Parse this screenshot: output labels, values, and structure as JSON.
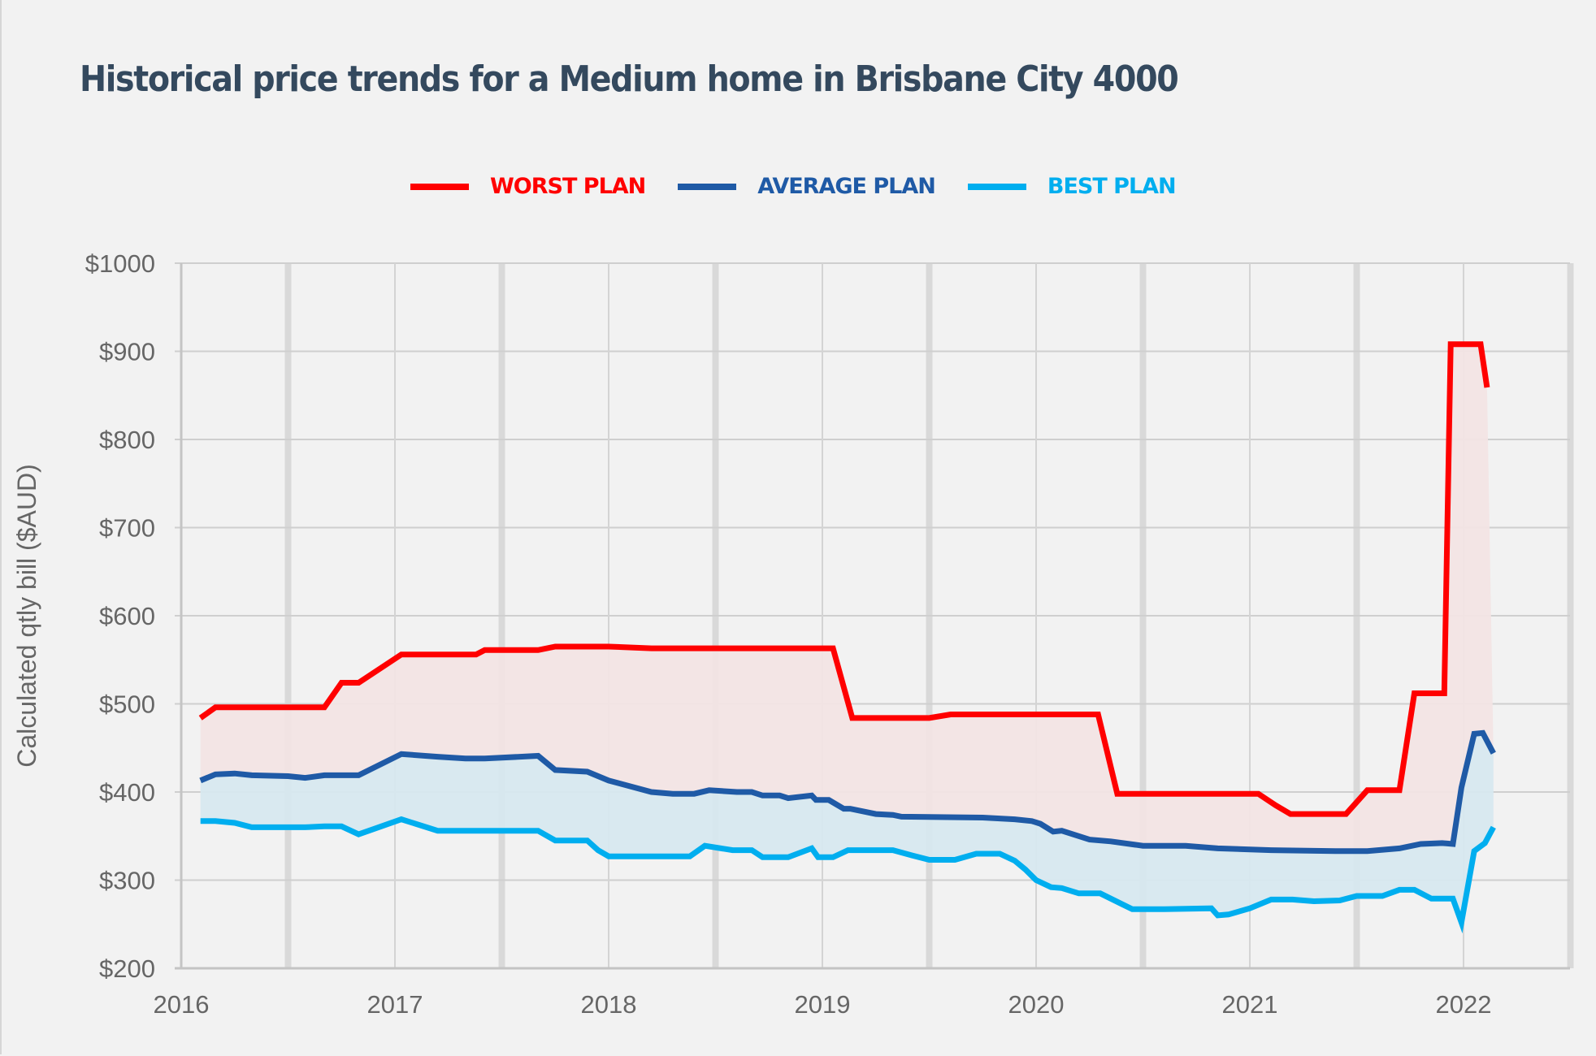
{
  "page": {
    "title": "Historical price trends for a Medium home in Brisbane City 4000"
  },
  "colors": {
    "worst": "#ff0000",
    "average": "#1f5aa6",
    "best": "#00aeef",
    "worst_fill": "#f2e4e4",
    "best_fill": "#d7e8ef",
    "title": "#34495e",
    "axis_text": "#666666"
  },
  "chart_data": {
    "type": "line",
    "title": "Historical price trends for a Medium home in Brisbane City 4000",
    "xlabel": "",
    "ylabel": "Calculated qtly bill ($AUD)",
    "xlim": [
      2016,
      2022.5
    ],
    "ylim": [
      200,
      1000
    ],
    "x_ticks": [
      "2016",
      "2017",
      "2018",
      "2019",
      "2020",
      "2021",
      "2022"
    ],
    "x_tick_values": [
      2016,
      2017,
      2018,
      2019,
      2020,
      2021,
      2022
    ],
    "y_ticks": [
      "$200",
      "$300",
      "$400",
      "$500",
      "$600",
      "$700",
      "$800",
      "$900",
      "$1000"
    ],
    "y_tick_values": [
      200,
      300,
      400,
      500,
      600,
      700,
      800,
      900,
      1000
    ],
    "grid": true,
    "legend_position": "top-center",
    "series": [
      {
        "name": "WORST PLAN",
        "key": "worst",
        "points": [
          [
            2016.09,
            484
          ],
          [
            2016.16,
            496
          ],
          [
            2016.67,
            496
          ],
          [
            2016.75,
            524
          ],
          [
            2016.83,
            524
          ],
          [
            2017.03,
            556
          ],
          [
            2017.38,
            556
          ],
          [
            2017.42,
            561
          ],
          [
            2017.67,
            561
          ],
          [
            2017.75,
            565
          ],
          [
            2018.0,
            565
          ],
          [
            2018.2,
            563
          ],
          [
            2019.05,
            563
          ],
          [
            2019.14,
            484
          ],
          [
            2019.5,
            484
          ],
          [
            2019.6,
            488
          ],
          [
            2020.29,
            488
          ],
          [
            2020.38,
            398
          ],
          [
            2021.04,
            398
          ],
          [
            2021.12,
            385
          ],
          [
            2021.19,
            375
          ],
          [
            2021.45,
            375
          ],
          [
            2021.55,
            402
          ],
          [
            2021.7,
            402
          ],
          [
            2021.77,
            512
          ],
          [
            2021.91,
            512
          ],
          [
            2021.94,
            908
          ],
          [
            2022.08,
            908
          ],
          [
            2022.11,
            859
          ]
        ]
      },
      {
        "name": "AVERAGE PLAN",
        "key": "average",
        "points": [
          [
            2016.09,
            413
          ],
          [
            2016.16,
            420
          ],
          [
            2016.25,
            421
          ],
          [
            2016.33,
            419
          ],
          [
            2016.5,
            418
          ],
          [
            2016.58,
            416
          ],
          [
            2016.67,
            419
          ],
          [
            2016.83,
            419
          ],
          [
            2017.03,
            443
          ],
          [
            2017.2,
            440
          ],
          [
            2017.33,
            438
          ],
          [
            2017.42,
            438
          ],
          [
            2017.67,
            441
          ],
          [
            2017.75,
            425
          ],
          [
            2017.9,
            423
          ],
          [
            2018.0,
            413
          ],
          [
            2018.2,
            400
          ],
          [
            2018.3,
            398
          ],
          [
            2018.4,
            398
          ],
          [
            2018.47,
            402
          ],
          [
            2018.6,
            400
          ],
          [
            2018.67,
            400
          ],
          [
            2018.72,
            396
          ],
          [
            2018.8,
            396
          ],
          [
            2018.84,
            393
          ],
          [
            2018.95,
            396
          ],
          [
            2018.97,
            391
          ],
          [
            2019.03,
            391
          ],
          [
            2019.1,
            381
          ],
          [
            2019.13,
            381
          ],
          [
            2019.25,
            375
          ],
          [
            2019.33,
            374
          ],
          [
            2019.37,
            372
          ],
          [
            2019.75,
            371
          ],
          [
            2019.9,
            369
          ],
          [
            2019.98,
            367
          ],
          [
            2020.02,
            364
          ],
          [
            2020.08,
            355
          ],
          [
            2020.12,
            356
          ],
          [
            2020.25,
            346
          ],
          [
            2020.35,
            344
          ],
          [
            2020.5,
            339
          ],
          [
            2020.7,
            339
          ],
          [
            2020.85,
            336
          ],
          [
            2021.1,
            334
          ],
          [
            2021.4,
            333
          ],
          [
            2021.55,
            333
          ],
          [
            2021.7,
            336
          ],
          [
            2021.8,
            341
          ],
          [
            2021.9,
            342
          ],
          [
            2021.95,
            341
          ],
          [
            2021.99,
            405
          ],
          [
            2022.05,
            466
          ],
          [
            2022.09,
            467
          ],
          [
            2022.14,
            444
          ]
        ]
      },
      {
        "name": "BEST PLAN",
        "key": "best",
        "points": [
          [
            2016.09,
            367
          ],
          [
            2016.16,
            367
          ],
          [
            2016.25,
            365
          ],
          [
            2016.33,
            360
          ],
          [
            2016.58,
            360
          ],
          [
            2016.67,
            361
          ],
          [
            2016.75,
            361
          ],
          [
            2016.83,
            352
          ],
          [
            2017.03,
            369
          ],
          [
            2017.2,
            356
          ],
          [
            2017.67,
            356
          ],
          [
            2017.75,
            345
          ],
          [
            2017.9,
            345
          ],
          [
            2017.95,
            334
          ],
          [
            2018.0,
            327
          ],
          [
            2018.38,
            327
          ],
          [
            2018.45,
            339
          ],
          [
            2018.58,
            334
          ],
          [
            2018.67,
            334
          ],
          [
            2018.72,
            326
          ],
          [
            2018.84,
            326
          ],
          [
            2018.95,
            336
          ],
          [
            2018.98,
            326
          ],
          [
            2019.05,
            326
          ],
          [
            2019.12,
            334
          ],
          [
            2019.33,
            334
          ],
          [
            2019.42,
            328
          ],
          [
            2019.5,
            323
          ],
          [
            2019.62,
            323
          ],
          [
            2019.72,
            330
          ],
          [
            2019.83,
            330
          ],
          [
            2019.9,
            322
          ],
          [
            2019.95,
            312
          ],
          [
            2020.0,
            300
          ],
          [
            2020.07,
            292
          ],
          [
            2020.12,
            291
          ],
          [
            2020.2,
            285
          ],
          [
            2020.3,
            285
          ],
          [
            2020.4,
            273
          ],
          [
            2020.45,
            267
          ],
          [
            2020.6,
            267
          ],
          [
            2020.82,
            268
          ],
          [
            2020.85,
            260
          ],
          [
            2020.9,
            261
          ],
          [
            2021.0,
            268
          ],
          [
            2021.1,
            278
          ],
          [
            2021.2,
            278
          ],
          [
            2021.3,
            276
          ],
          [
            2021.42,
            277
          ],
          [
            2021.5,
            282
          ],
          [
            2021.62,
            282
          ],
          [
            2021.7,
            289
          ],
          [
            2021.77,
            289
          ],
          [
            2021.85,
            279
          ],
          [
            2021.95,
            279
          ],
          [
            2021.99,
            252
          ],
          [
            2022.05,
            333
          ],
          [
            2022.1,
            342
          ],
          [
            2022.14,
            360
          ]
        ]
      }
    ]
  }
}
